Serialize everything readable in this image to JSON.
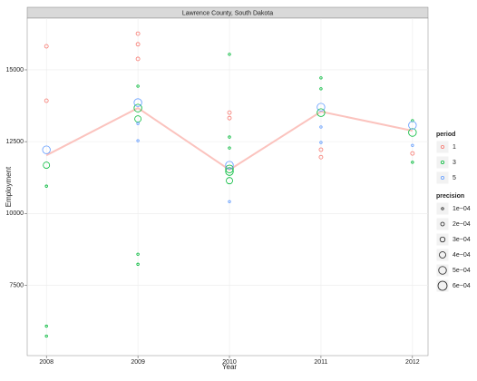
{
  "chart_data": {
    "type": "scatter",
    "title": "Lawrence County, South Dakota",
    "x_label": "Year",
    "y_label": "Employment",
    "xlim": [
      2007.79,
      2012.17
    ],
    "ylim": [
      5050,
      16800
    ],
    "xticks": [
      2008,
      2009,
      2010,
      2011,
      2012
    ],
    "yticks": [
      7500,
      10000,
      12500,
      15000
    ],
    "grid": true,
    "legend_title": "period",
    "series": [
      {
        "name": "1",
        "color": "#F8766D",
        "x": [
          2008,
          2008,
          2009,
          2009,
          2009,
          2010,
          2010,
          2011,
          2011,
          2012
        ],
        "values": [
          15820,
          13925,
          16260,
          15890,
          15380,
          13510,
          13320,
          12220,
          11960,
          12090
        ],
        "sizes": [
          0.0002,
          0.0002,
          0.0002,
          0.0002,
          0.0002,
          0.0002,
          0.0002,
          0.0002,
          0.0002,
          0.0002
        ]
      },
      {
        "name": "3",
        "color": "#00BA38",
        "x": [
          2008,
          2008,
          2008,
          2008,
          2009,
          2009,
          2009,
          2009,
          2009,
          2010,
          2010,
          2010,
          2010,
          2010,
          2010,
          2011,
          2011,
          2011,
          2012,
          2012,
          2012
        ],
        "values": [
          11680,
          10950,
          6075,
          5730,
          14430,
          13670,
          13290,
          8580,
          8230,
          15540,
          12660,
          12280,
          11550,
          11460,
          11140,
          14720,
          14340,
          13510,
          13230,
          12820,
          11780
        ],
        "sizes": [
          0.0004,
          0.0001,
          0.0001,
          0.0001,
          0.0001,
          0.0005,
          0.0004,
          0.0001,
          0.0001,
          0.0001,
          0.0001,
          0.0001,
          0.0005,
          0.0005,
          0.0004,
          0.0001,
          0.0001,
          0.0005,
          0.0001,
          0.0005,
          0.0001
        ]
      },
      {
        "name": "5",
        "color": "#619CFF",
        "x": [
          2008,
          2009,
          2009,
          2009,
          2010,
          2010,
          2011,
          2011,
          2011,
          2012,
          2012
        ],
        "values": [
          12215,
          13860,
          13130,
          12530,
          11680,
          10410,
          13700,
          13010,
          12470,
          13070,
          12370
        ],
        "sizes": [
          0.0005,
          0.0005,
          0.0001,
          0.0001,
          0.0005,
          0.0001,
          0.0005,
          0.0001,
          0.0001,
          0.0005,
          0.0001
        ]
      }
    ],
    "trend": {
      "color": "#FBC3BE",
      "x": [
        2008,
        2009,
        2010,
        2011,
        2012
      ],
      "values": [
        12025,
        13670,
        11520,
        13545,
        12880
      ]
    },
    "size_legend_title": "precision",
    "size_legend": [
      {
        "value": 0.0001,
        "label": "1e−04"
      },
      {
        "value": 0.0002,
        "label": "2e−04"
      },
      {
        "value": 0.0003,
        "label": "3e−04"
      },
      {
        "value": 0.0004,
        "label": "4e−04"
      },
      {
        "value": 0.0005,
        "label": "5e−04"
      },
      {
        "value": 0.0006,
        "label": "6e−04"
      }
    ]
  }
}
